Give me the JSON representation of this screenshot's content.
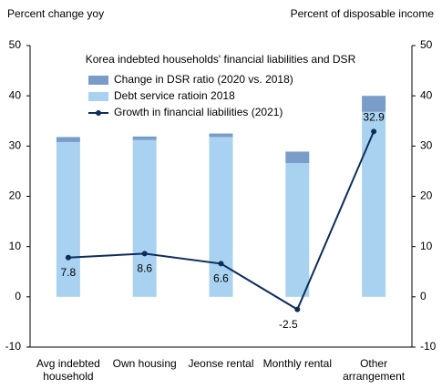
{
  "chart_data": {
    "type": "bar-line",
    "title": "Korea indebted households' financial liabilities and DSR",
    "y_label": "Percent change yoy",
    "y2_label": "Percent of disposable income",
    "categories": [
      "Avg indebted household",
      "Own housing",
      "Jeonse rental",
      "Monthly rental",
      "Other arrangement"
    ],
    "series": [
      {
        "name": "Change in DSR ratio (2020 vs. 2018)",
        "type": "bar",
        "axis": "y2",
        "color": "#7a9cc9",
        "values": [
          1.0,
          0.7,
          0.7,
          2.3,
          3.2
        ]
      },
      {
        "name": "Debt service ratioin 2018",
        "type": "bar",
        "axis": "y2",
        "color": "#a9d2f0",
        "values": [
          30.8,
          31.2,
          31.8,
          26.6,
          36.8
        ]
      },
      {
        "name": "Growth in financial liabilities (2021)",
        "type": "line",
        "axis": "y",
        "color": "#0d2d5a",
        "values": [
          7.8,
          8.6,
          6.6,
          -2.5,
          32.9
        ]
      }
    ],
    "ylim": [
      -10,
      50
    ],
    "yticks": [
      -10,
      0,
      10,
      20,
      30,
      40,
      50
    ],
    "y2lim": [
      -10,
      50
    ],
    "y2ticks": [
      -10,
      0,
      10,
      20,
      30,
      40,
      50
    ],
    "grid": false,
    "legend": "top"
  }
}
